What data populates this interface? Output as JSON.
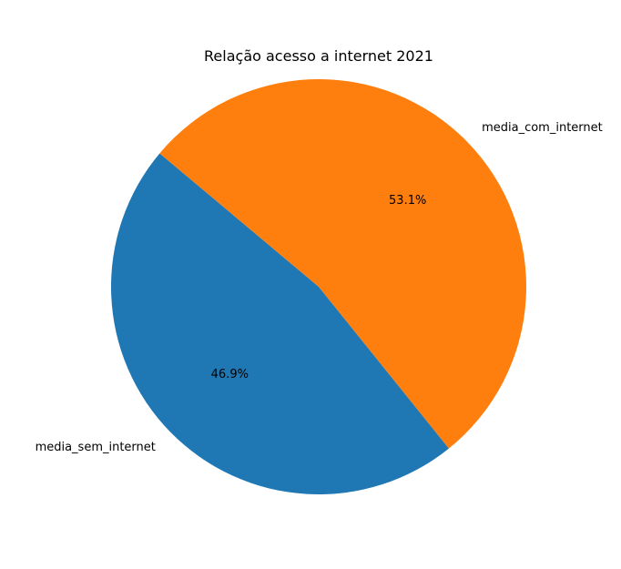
{
  "chart_data": {
    "type": "pie",
    "title": "Relação acesso a internet 2021",
    "slices": [
      {
        "label": "media_sem_internet",
        "value": 46.9,
        "pct_label": "46.9%",
        "color": "#1f77b4"
      },
      {
        "label": "media_com_internet",
        "value": 53.1,
        "pct_label": "53.1%",
        "color": "#ff7f0e"
      }
    ],
    "start_angle_deg": 140,
    "direction": "counterclockwise",
    "legend": "none"
  }
}
